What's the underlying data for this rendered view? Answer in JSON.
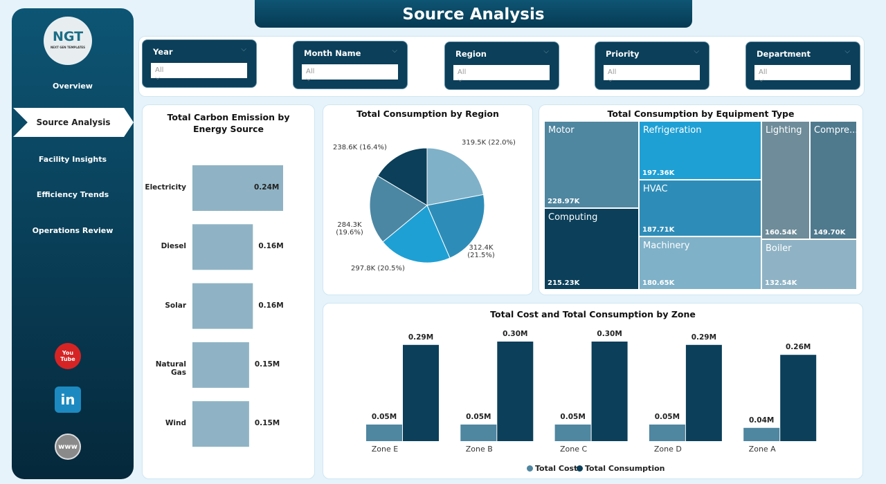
{
  "title": "Source Analysis",
  "logo": {
    "text": "NGT",
    "subtext": "NEXT GEN TEMPLATES"
  },
  "nav": [
    {
      "label": "Overview"
    },
    {
      "label": "Source Analysis",
      "active": true
    },
    {
      "label": "Facility Insights"
    },
    {
      "label": "Efficiency Trends"
    },
    {
      "label": "Operations Review"
    }
  ],
  "social": [
    {
      "icon": "youtube-icon",
      "label": "You Tube",
      "color": "#d62424"
    },
    {
      "icon": "linkedin-icon",
      "label": "in",
      "color": "#1c8ac0"
    },
    {
      "icon": "globe-icon",
      "label": "www",
      "color": "#8a8a8a"
    }
  ],
  "filters": [
    {
      "label": "Year",
      "value": "All"
    },
    {
      "label": "Month Name",
      "value": "All"
    },
    {
      "label": "Region",
      "value": "All"
    },
    {
      "label": "Priority",
      "value": "All"
    },
    {
      "label": "Department",
      "value": "All"
    }
  ],
  "chart_data": [
    {
      "type": "bar",
      "orientation": "horizontal",
      "title": "Total Carbon Emission by Energy Source",
      "categories": [
        "Electricity",
        "Diesel",
        "Solar",
        "Natural Gas",
        "Wind"
      ],
      "values": [
        0.24,
        0.16,
        0.16,
        0.15,
        0.15
      ],
      "labels": [
        "0.24M",
        "0.16M",
        "0.16M",
        "0.15M",
        "0.15M"
      ],
      "unit": "M",
      "color": "#8fb3c4"
    },
    {
      "type": "pie",
      "title": "Total Consumption by Region",
      "values": [
        319.5,
        312.4,
        297.8,
        284.3,
        238.6
      ],
      "labels": [
        "319.5K (22.0%)",
        "312.4K (21.5%)",
        "297.8K (20.5%)",
        "284.3K (19.6%)",
        "238.6K (16.4%)"
      ],
      "colors": [
        "#7fb1c8",
        "#2e8db8",
        "#1fa0d4",
        "#4b87a3",
        "#0b3f5a"
      ]
    },
    {
      "type": "treemap",
      "title": "Total Consumption by Equipment Type",
      "items": [
        {
          "name": "Motor",
          "value": "228.97K"
        },
        {
          "name": "Computing",
          "value": "215.23K"
        },
        {
          "name": "Refrigeration",
          "value": "197.36K"
        },
        {
          "name": "HVAC",
          "value": "187.71K"
        },
        {
          "name": "Machinery",
          "value": "180.65K"
        },
        {
          "name": "Lighting",
          "value": "160.54K"
        },
        {
          "name": "Compre...",
          "value": "149.70K"
        },
        {
          "name": "Boiler",
          "value": "132.54K"
        }
      ]
    },
    {
      "type": "bar",
      "title": "Total Cost and Total Consumption by Zone",
      "categories": [
        "Zone E",
        "Zone B",
        "Zone C",
        "Zone D",
        "Zone A"
      ],
      "series": [
        {
          "name": "Total Cost",
          "values": [
            0.05,
            0.05,
            0.05,
            0.05,
            0.04
          ],
          "labels": [
            "0.05M",
            "0.05M",
            "0.05M",
            "0.05M",
            "0.04M"
          ],
          "color": "#4f86a0"
        },
        {
          "name": "Total Consumption",
          "values": [
            0.29,
            0.3,
            0.3,
            0.29,
            0.26
          ],
          "labels": [
            "0.29M",
            "0.30M",
            "0.30M",
            "0.29M",
            "0.26M"
          ],
          "color": "#0b3f5a"
        }
      ],
      "legend": "bottom"
    }
  ]
}
